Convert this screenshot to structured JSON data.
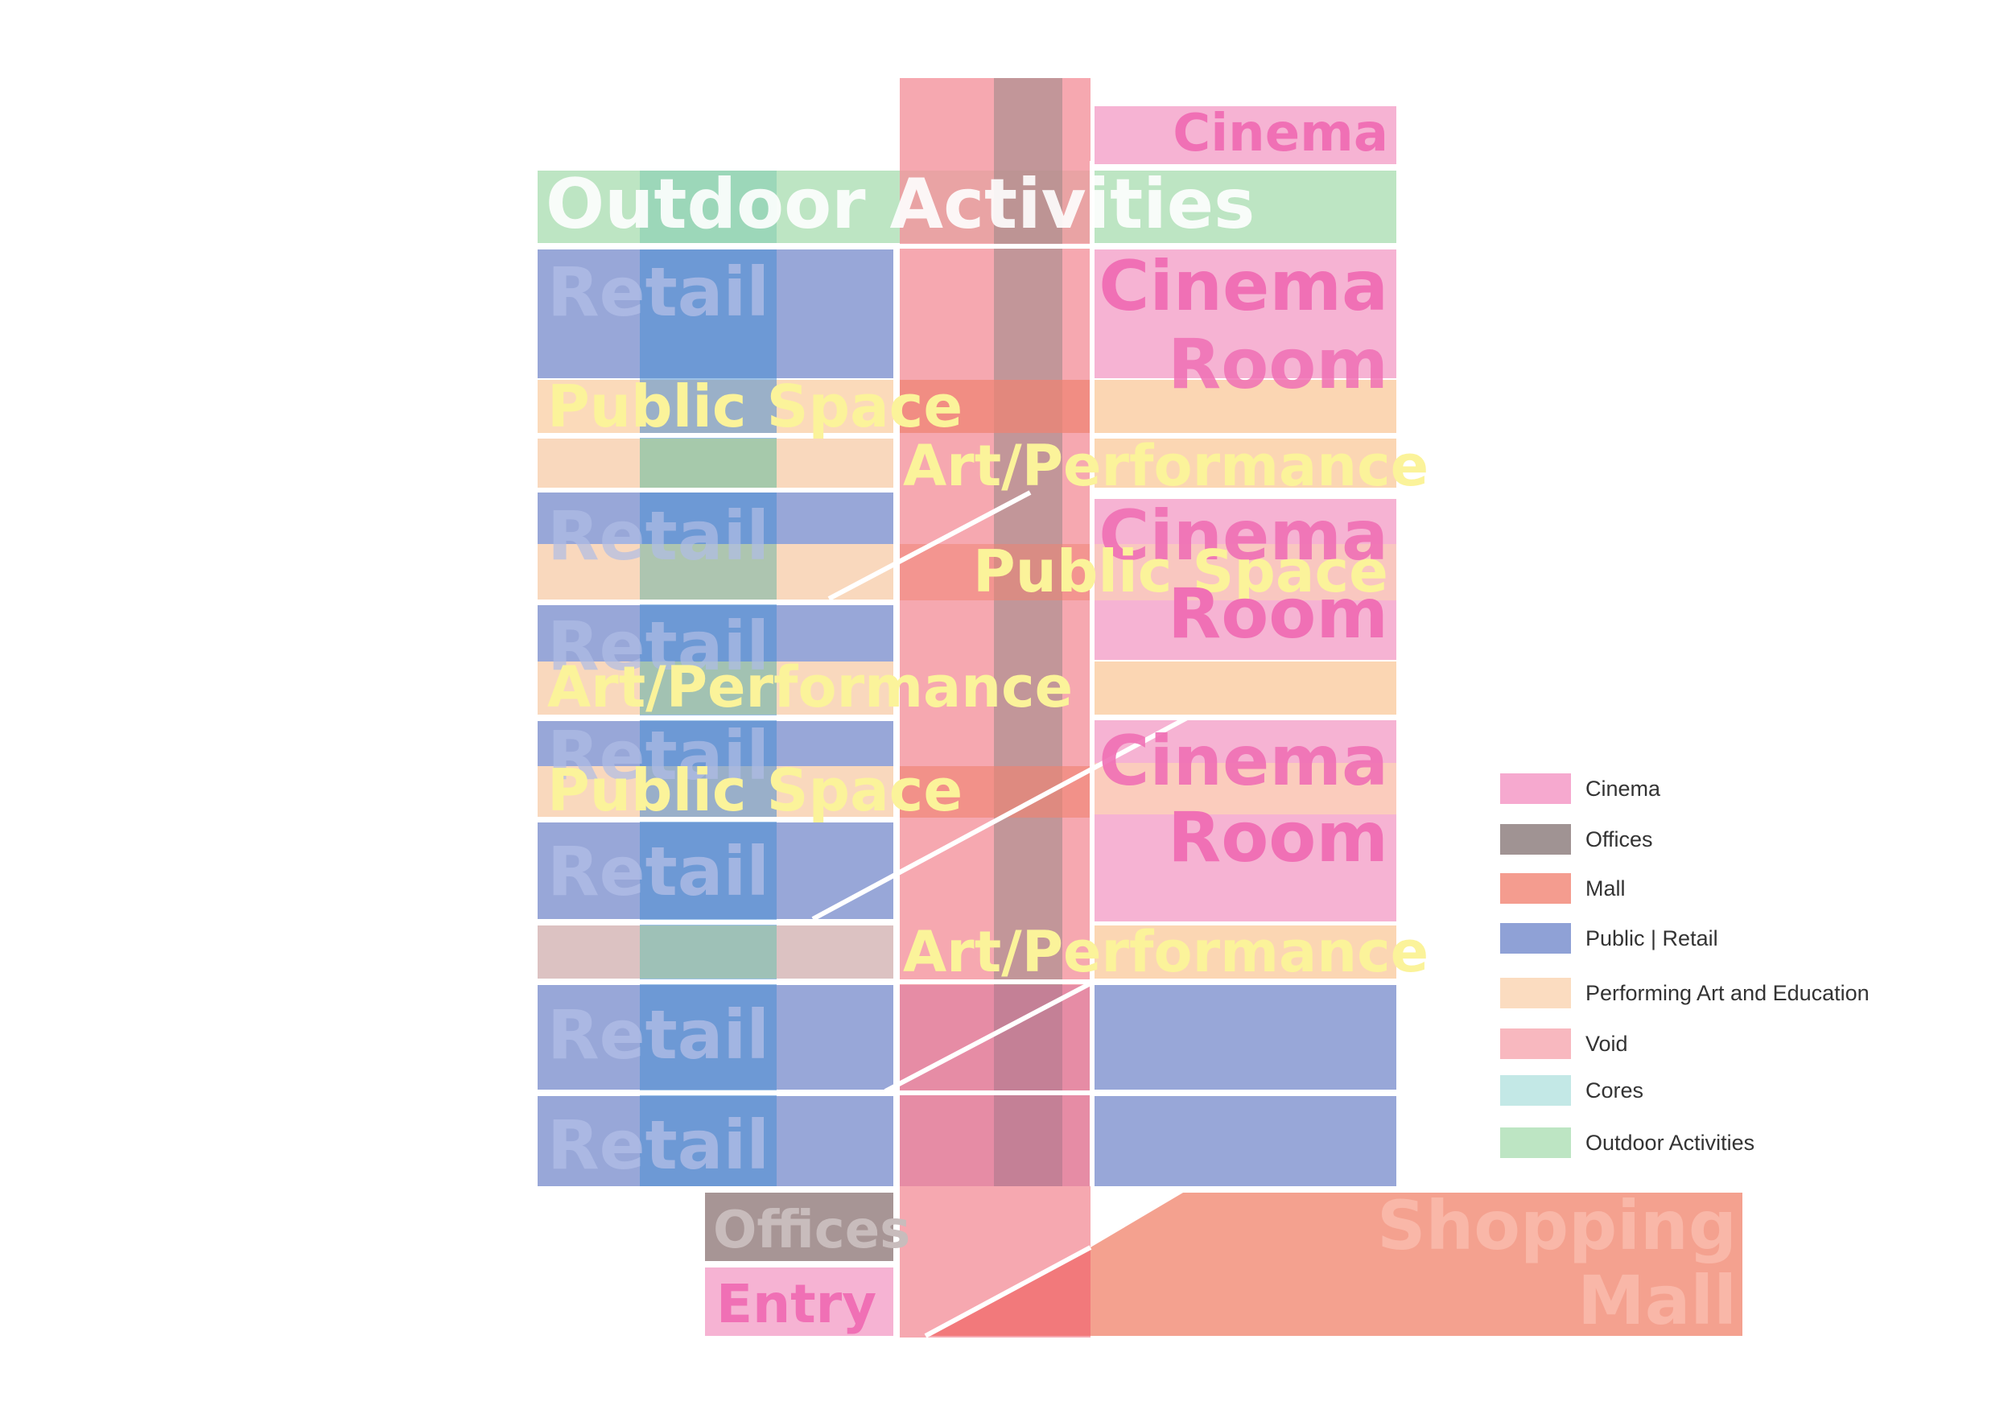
{
  "colors": {
    "cinema": "#f47fb8",
    "offices": "#7f6868",
    "mall": "#ef6f5e",
    "retail": "#6c81c4",
    "performing": "#f6c89a",
    "void": "#f3929c",
    "cores": "#9ad8d4",
    "outdoor": "#8fd19a",
    "core_blue": "#4a8ed4"
  },
  "labels": {
    "cinema_top": "Cinema",
    "outdoor": "Outdoor Activities",
    "retail": "Retail",
    "cinema_room_1": "Cinema",
    "room_1": "Room",
    "public_space": "Public Space",
    "art_performance": "Art/Performance",
    "cinema_room_2": "Cinema",
    "room_2": "Room",
    "cinema_room_3": "Cinema",
    "room_3": "Room",
    "offices": "Offices",
    "entry": "Entry",
    "shopping": "Shopping",
    "mall": "Mall"
  },
  "legend": [
    {
      "label": "Cinema",
      "color": "#f6a9cf"
    },
    {
      "label": "Offices",
      "color": "#a09393"
    },
    {
      "label": "Mall",
      "color": "#f49c8f"
    },
    {
      "label": "Public | Retail",
      "color": "#8fa1d6"
    },
    {
      "label": "Performing Art and Education",
      "color": "#fbdcc0"
    },
    {
      "label": "Void",
      "color": "#f8b8bf"
    },
    {
      "label": "Cores",
      "color": "#c3e8e6"
    },
    {
      "label": "Outdoor Activities",
      "color": "#bde5c3"
    }
  ]
}
